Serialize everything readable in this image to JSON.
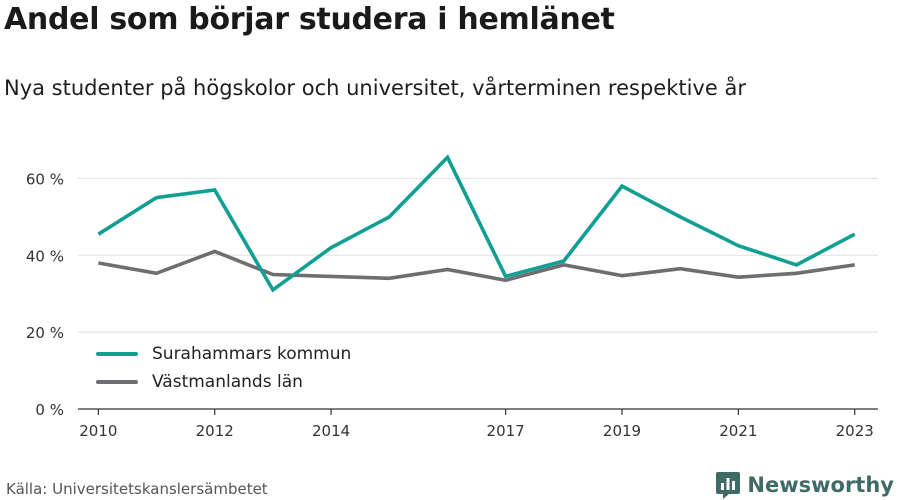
{
  "title": "Andel som börjar studera i hemlänet",
  "subtitle": "Nya studenter på högskolor och universitet, vårterminen respektive år",
  "source": "Källa: Universitetskanslersämbetet",
  "brand": {
    "name": "Newsworthy",
    "icon": "newsworthy-logo-icon",
    "color": "#3f6b67"
  },
  "chart_data": {
    "type": "line",
    "title": "",
    "xlabel": "",
    "ylabel": "",
    "x": [
      2010,
      2011,
      2012,
      2013,
      2014,
      2015,
      2016,
      2017,
      2018,
      2019,
      2020,
      2021,
      2022,
      2023
    ],
    "x_tick_labels": [
      "2010",
      "2012",
      "2014",
      "2017",
      "2019",
      "2021",
      "2023"
    ],
    "y_tick_labels": [
      "0 %",
      "20 %",
      "40 %",
      "60 %"
    ],
    "y_ticks": [
      0,
      20,
      40,
      60
    ],
    "ylim": [
      0,
      70
    ],
    "xlim": [
      2009.65,
      2023.4
    ],
    "grid": true,
    "legend_position": "bottom-left",
    "series": [
      {
        "name": "Surahammars kommun",
        "color": "#0f9f93",
        "values": [
          45.5,
          55,
          57,
          31,
          42,
          50,
          65.5,
          34.5,
          38.5,
          58,
          50,
          42.5,
          37.5,
          45.5
        ]
      },
      {
        "name": "Västmanlands län",
        "color": "#6e6e72",
        "values": [
          38,
          35.3,
          41,
          35,
          34.5,
          34,
          36.3,
          33.5,
          37.5,
          34.7,
          36.5,
          34.3,
          35.3,
          37.5
        ]
      }
    ]
  }
}
